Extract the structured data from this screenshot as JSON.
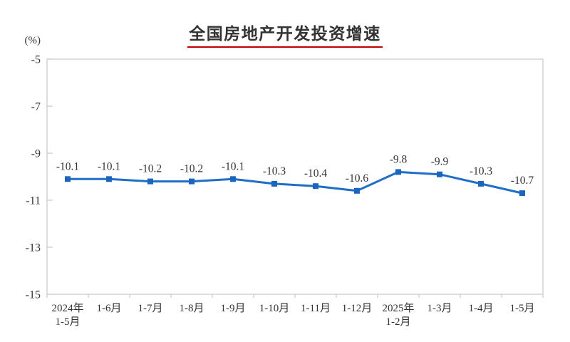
{
  "chart_data": {
    "type": "line",
    "title": "全国房地产开发投资增速",
    "ylabel": "(%)",
    "categories": [
      "2024年\n1-5月",
      "1-6月",
      "1-7月",
      "1-8月",
      "1-9月",
      "1-10月",
      "1-11月",
      "1-12月",
      "2025年\n1-2月",
      "1-3月",
      "1-4月",
      "1-5月"
    ],
    "values": [
      -10.1,
      -10.1,
      -10.2,
      -10.2,
      -10.1,
      -10.3,
      -10.4,
      -10.6,
      -9.8,
      -9.9,
      -10.3,
      -10.7
    ],
    "ylim": [
      -15,
      -5
    ],
    "yticks": [
      -5,
      -7,
      -9,
      -11,
      -13,
      -15
    ],
    "grid": false,
    "legend": "none",
    "data_labels": true,
    "colors": {
      "line": "#1F6EC8",
      "marker": "#1A66BE",
      "label_text": "#333333",
      "axis": "#C9C9C9",
      "title_text": "#333333",
      "title_underline": "#C00000",
      "background": "#FFFFFF"
    }
  }
}
